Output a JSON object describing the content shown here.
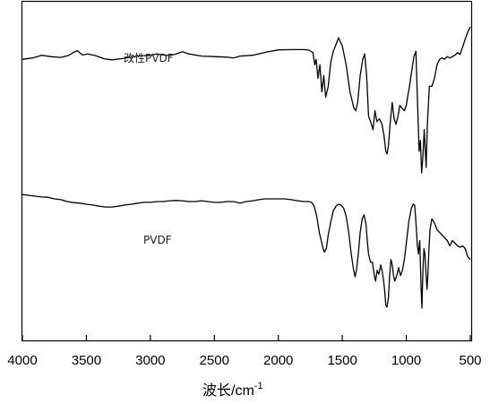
{
  "chart_data": {
    "type": "line",
    "title": "",
    "xlabel": "波长/cm",
    "xlabel_superscript": "-1",
    "ylabel": "",
    "xlim": [
      4000,
      500
    ],
    "x_reversed": true,
    "y_ticks_shown": false,
    "grid": false,
    "x_ticks": [
      4000,
      3500,
      3000,
      2500,
      2000,
      1500,
      1000,
      500
    ],
    "series": [
      {
        "name": "改性PVDF",
        "color": "#000000",
        "points": [
          [
            4000,
            12
          ],
          [
            3920,
            11.5
          ],
          [
            3850,
            10.5
          ],
          [
            3780,
            11
          ],
          [
            3700,
            11.3
          ],
          [
            3640,
            10.6
          ],
          [
            3600,
            9.4
          ],
          [
            3570,
            8.8
          ],
          [
            3530,
            10.4
          ],
          [
            3490,
            10
          ],
          [
            3430,
            10.6
          ],
          [
            3360,
            11.8
          ],
          [
            3300,
            12.2
          ],
          [
            3200,
            11.6
          ],
          [
            3100,
            10.8
          ],
          [
            3000,
            10.5
          ],
          [
            2950,
            10
          ],
          [
            2900,
            10.4
          ],
          [
            2850,
            10.6
          ],
          [
            2800,
            10
          ],
          [
            2750,
            9.2
          ],
          [
            2700,
            10
          ],
          [
            2600,
            10.8
          ],
          [
            2500,
            11
          ],
          [
            2400,
            11.2
          ],
          [
            2350,
            11.5
          ],
          [
            2300,
            10.8
          ],
          [
            2200,
            10.5
          ],
          [
            2100,
            9.4
          ],
          [
            2000,
            8.5
          ],
          [
            1900,
            8.4
          ],
          [
            1800,
            8.4
          ],
          [
            1760,
            8.6
          ],
          [
            1730,
            9.5
          ],
          [
            1715,
            14
          ],
          [
            1705,
            12
          ],
          [
            1690,
            19
          ],
          [
            1675,
            14
          ],
          [
            1660,
            24
          ],
          [
            1645,
            18
          ],
          [
            1630,
            26
          ],
          [
            1610,
            22
          ],
          [
            1590,
            13
          ],
          [
            1570,
            9
          ],
          [
            1545,
            6
          ],
          [
            1530,
            4
          ],
          [
            1500,
            7
          ],
          [
            1470,
            14
          ],
          [
            1440,
            24
          ],
          [
            1410,
            30
          ],
          [
            1395,
            31
          ],
          [
            1380,
            28
          ],
          [
            1360,
            18
          ],
          [
            1340,
            12
          ],
          [
            1325,
            10
          ],
          [
            1310,
            18
          ],
          [
            1295,
            33
          ],
          [
            1280,
            35
          ],
          [
            1260,
            38
          ],
          [
            1245,
            31
          ],
          [
            1230,
            35
          ],
          [
            1210,
            34
          ],
          [
            1190,
            36
          ],
          [
            1175,
            40
          ],
          [
            1160,
            46
          ],
          [
            1150,
            47
          ],
          [
            1140,
            44
          ],
          [
            1125,
            35
          ],
          [
            1110,
            28
          ],
          [
            1095,
            34
          ],
          [
            1080,
            36
          ],
          [
            1065,
            33
          ],
          [
            1050,
            29
          ],
          [
            1035,
            30
          ],
          [
            1015,
            31
          ],
          [
            1000,
            29
          ],
          [
            990,
            26
          ],
          [
            975,
            22
          ],
          [
            960,
            17
          ],
          [
            940,
            11
          ],
          [
            925,
            9
          ],
          [
            912,
            28
          ],
          [
            900,
            46
          ],
          [
            890,
            42
          ],
          [
            880,
            54
          ],
          [
            870,
            48
          ],
          [
            860,
            38
          ],
          [
            845,
            52
          ],
          [
            835,
            36
          ],
          [
            820,
            22
          ],
          [
            800,
            22
          ],
          [
            780,
            19
          ],
          [
            760,
            14
          ],
          [
            740,
            12
          ],
          [
            720,
            11.5
          ],
          [
            700,
            12
          ],
          [
            680,
            11
          ],
          [
            660,
            11.5
          ],
          [
            640,
            11
          ],
          [
            620,
            10.5
          ],
          [
            600,
            9.5
          ],
          [
            580,
            10.2
          ],
          [
            560,
            7.5
          ],
          [
            540,
            4.5
          ],
          [
            520,
            2
          ],
          [
            500,
            0
          ]
        ]
      },
      {
        "name": "PVDF",
        "color": "#000000",
        "points": [
          [
            4000,
            62
          ],
          [
            3950,
            62.3
          ],
          [
            3900,
            62.6
          ],
          [
            3850,
            62.9
          ],
          [
            3800,
            63
          ],
          [
            3750,
            63.6
          ],
          [
            3700,
            63.9
          ],
          [
            3650,
            64.6
          ],
          [
            3600,
            65
          ],
          [
            3550,
            65.2
          ],
          [
            3500,
            65.6
          ],
          [
            3450,
            65.9
          ],
          [
            3400,
            66.3
          ],
          [
            3350,
            66.6
          ],
          [
            3300,
            66.6
          ],
          [
            3250,
            66.3
          ],
          [
            3200,
            65.9
          ],
          [
            3150,
            65.6
          ],
          [
            3100,
            65.2
          ],
          [
            3050,
            64.9
          ],
          [
            3000,
            64.9
          ],
          [
            2950,
            64.6
          ],
          [
            2900,
            64.6
          ],
          [
            2850,
            64.3
          ],
          [
            2800,
            64.2
          ],
          [
            2750,
            64.3
          ],
          [
            2700,
            64.6
          ],
          [
            2650,
            64.6
          ],
          [
            2600,
            64.3
          ],
          [
            2550,
            64.6
          ],
          [
            2500,
            64.9
          ],
          [
            2450,
            64.9
          ],
          [
            2400,
            64.6
          ],
          [
            2350,
            64.6
          ],
          [
            2300,
            65.2
          ],
          [
            2250,
            64.6
          ],
          [
            2200,
            64.3
          ],
          [
            2150,
            63.9
          ],
          [
            2100,
            63.6
          ],
          [
            2050,
            63.6
          ],
          [
            2000,
            63.6
          ],
          [
            1950,
            63.6
          ],
          [
            1900,
            63.9
          ],
          [
            1850,
            64.3
          ],
          [
            1800,
            64.6
          ],
          [
            1760,
            64.6
          ],
          [
            1740,
            64.9
          ],
          [
            1720,
            66.3
          ],
          [
            1700,
            70
          ],
          [
            1680,
            76
          ],
          [
            1665,
            79
          ],
          [
            1650,
            82
          ],
          [
            1640,
            83.3
          ],
          [
            1625,
            82
          ],
          [
            1610,
            77
          ],
          [
            1590,
            72
          ],
          [
            1570,
            68
          ],
          [
            1550,
            66.3
          ],
          [
            1530,
            65.6
          ],
          [
            1510,
            65.9
          ],
          [
            1490,
            67
          ],
          [
            1470,
            70
          ],
          [
            1450,
            76
          ],
          [
            1430,
            84
          ],
          [
            1415,
            89
          ],
          [
            1400,
            92.4
          ],
          [
            1390,
            90
          ],
          [
            1375,
            84
          ],
          [
            1360,
            76
          ],
          [
            1345,
            71
          ],
          [
            1330,
            69.5
          ],
          [
            1315,
            73
          ],
          [
            1305,
            79
          ],
          [
            1295,
            84
          ],
          [
            1280,
            87
          ],
          [
            1265,
            87
          ],
          [
            1250,
            92
          ],
          [
            1240,
            94
          ],
          [
            1228,
            90
          ],
          [
            1215,
            91.5
          ],
          [
            1200,
            88
          ],
          [
            1190,
            90
          ],
          [
            1180,
            93
          ],
          [
            1170,
            97
          ],
          [
            1160,
            103
          ],
          [
            1150,
            103.6
          ],
          [
            1140,
            100
          ],
          [
            1130,
            92
          ],
          [
            1120,
            86
          ],
          [
            1110,
            88
          ],
          [
            1100,
            92
          ],
          [
            1090,
            94
          ],
          [
            1075,
            92
          ],
          [
            1060,
            89
          ],
          [
            1045,
            92
          ],
          [
            1030,
            90
          ],
          [
            1015,
            86
          ],
          [
            1000,
            80
          ],
          [
            980,
            72
          ],
          [
            960,
            67
          ],
          [
            945,
            65.5
          ],
          [
            935,
            66
          ],
          [
            925,
            72
          ],
          [
            915,
            80
          ],
          [
            905,
            84
          ],
          [
            895,
            79
          ],
          [
            885,
            96
          ],
          [
            878,
            104
          ],
          [
            870,
            90
          ],
          [
            862,
            82
          ],
          [
            855,
            84
          ],
          [
            845,
            92
          ],
          [
            838,
            97
          ],
          [
            832,
            92
          ],
          [
            825,
            84
          ],
          [
            815,
            75
          ],
          [
            800,
            71
          ],
          [
            780,
            72.5
          ],
          [
            760,
            75
          ],
          [
            740,
            76
          ],
          [
            720,
            77
          ],
          [
            700,
            78
          ],
          [
            680,
            79
          ],
          [
            660,
            81
          ],
          [
            640,
            79
          ],
          [
            620,
            80
          ],
          [
            600,
            81
          ],
          [
            580,
            81.5
          ],
          [
            560,
            81
          ],
          [
            540,
            82
          ],
          [
            520,
            85
          ],
          [
            500,
            86
          ]
        ]
      }
    ],
    "annotations": [
      {
        "text": "改性PVDF",
        "series": 0
      },
      {
        "text": "PVDF",
        "series": 1
      }
    ]
  }
}
